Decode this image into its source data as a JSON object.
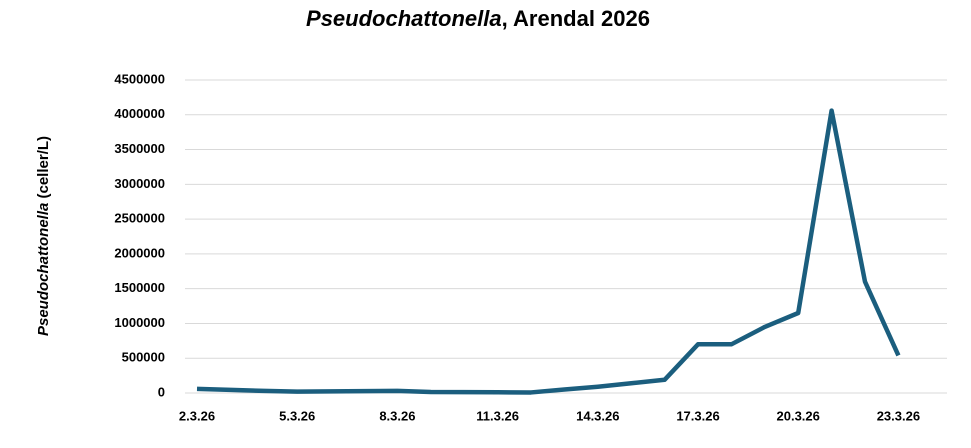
{
  "chart_data": {
    "type": "line",
    "title": [
      "Pseudochattonella",
      ", Arendal 2026"
    ],
    "y_label": [
      "Pseudochattonella",
      " (celler/L)"
    ],
    "categories": [
      "2.3.26",
      null,
      null,
      "5.3.26",
      null,
      null,
      "8.3.26",
      null,
      null,
      "11.3.26",
      null,
      null,
      "14.3.26",
      null,
      null,
      "17.3.26",
      null,
      null,
      "20.3.26",
      null,
      null,
      "23.3.26"
    ],
    "values": [
      60000,
      45000,
      30000,
      20000,
      23000,
      27000,
      30000,
      15000,
      12000,
      10000,
      8000,
      50000,
      90000,
      140000,
      190000,
      700000,
      700000,
      950000,
      1150000,
      4060000,
      1600000,
      540000
    ],
    "color": "#1b5e7e",
    "ylim": [
      0,
      4500000
    ],
    "yticks": [
      0,
      500000,
      1000000,
      1500000,
      2000000,
      2500000,
      3000000,
      3500000,
      4000000,
      4500000
    ],
    "grid": true
  }
}
